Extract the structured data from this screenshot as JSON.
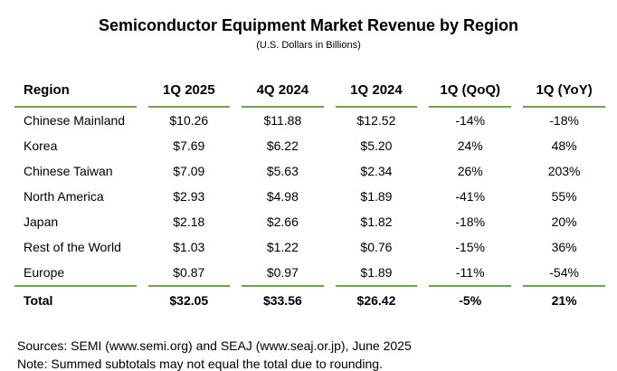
{
  "chart_data": {
    "type": "table",
    "title": "Semiconductor Equipment Market Revenue by Region",
    "subtitle": "(U.S. Dollars in Billions)",
    "columns": [
      "Region",
      "1Q 2025",
      "4Q 2024",
      "1Q 2024",
      "1Q (QoQ)",
      "1Q (YoY)"
    ],
    "rows": [
      [
        "Chinese Mainland",
        "$10.26",
        "$11.88",
        "$12.52",
        "-14%",
        "-18%"
      ],
      [
        "Korea",
        "$7.69",
        "$6.22",
        "$5.20",
        "24%",
        "48%"
      ],
      [
        "Chinese Taiwan",
        "$7.09",
        "$5.63",
        "$2.34",
        "26%",
        "203%"
      ],
      [
        "North America",
        "$2.93",
        "$4.98",
        "$1.89",
        "-41%",
        "55%"
      ],
      [
        "Japan",
        "$2.18",
        "$2.66",
        "$1.82",
        "-18%",
        "20%"
      ],
      [
        "Rest of the World",
        "$1.03",
        "$1.22",
        "$0.76",
        "-15%",
        "36%"
      ],
      [
        "Europe",
        "$0.87",
        "$0.97",
        "$1.89",
        "-11%",
        "-54%"
      ]
    ],
    "total_row": [
      "Total",
      "$32.05",
      "$33.56",
      "$26.42",
      "-5%",
      "21%"
    ],
    "layout": {
      "rule_color": "#74a151",
      "rules": "horizontal segmented per column under header and above total",
      "numeric_alignment": "center",
      "region_alignment": "left"
    }
  },
  "footer": {
    "sources": "Sources: SEMI (www.semi.org) and SEAJ (www.seaj.or.jp), June 2025",
    "note": "Note: Summed subtotals may not equal the total due to rounding."
  },
  "colors": {
    "background": "#ffffff",
    "text": "#000000",
    "accent_green": "#74a151"
  }
}
